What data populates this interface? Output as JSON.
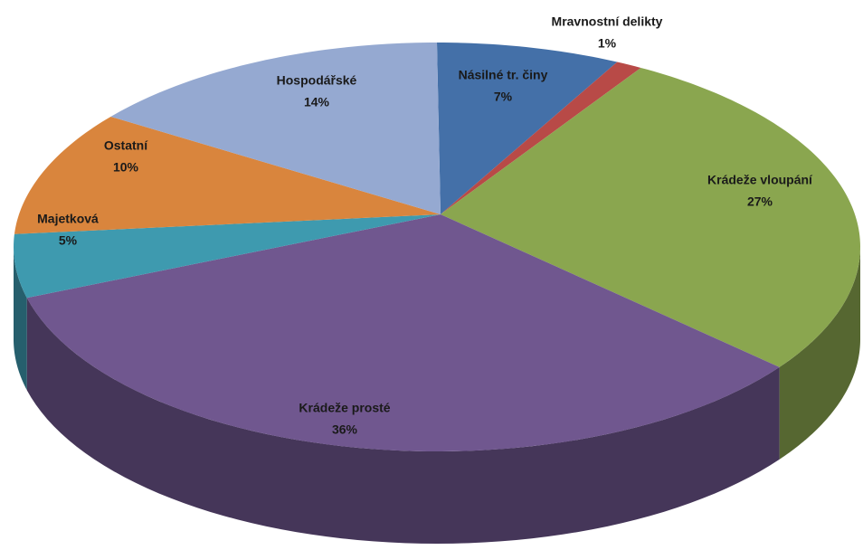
{
  "chart_data": {
    "type": "pie",
    "categories": [
      "Násilné tr. činy",
      "Mravnostní delikty",
      "Krádeže vloupání",
      "Krádeže prosté",
      "Majetková",
      "Ostatní",
      "Hospodářské"
    ],
    "values": [
      7,
      1,
      27,
      36,
      5,
      10,
      14
    ],
    "value_labels": [
      "7%",
      "1%",
      "27%",
      "36%",
      "5%",
      "10%",
      "14%"
    ],
    "colors": [
      "#4470a8",
      "#b84a47",
      "#8aa64f",
      "#70578f",
      "#3e9aaf",
      "#d9853d",
      "#95a9d1"
    ]
  }
}
